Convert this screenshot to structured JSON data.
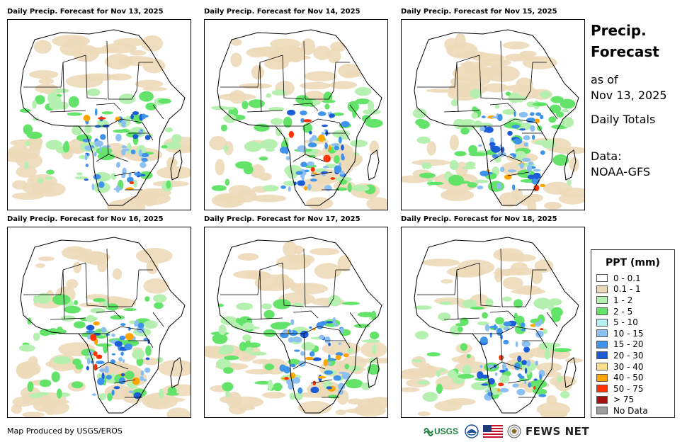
{
  "panels": [
    {
      "title": "Daily Precip. Forecast for Nov 13, 2025"
    },
    {
      "title": "Daily Precip. Forecast for Nov 14, 2025"
    },
    {
      "title": "Daily Precip. Forecast for Nov 15, 2025"
    },
    {
      "title": "Daily Precip. Forecast for Nov 16, 2025"
    },
    {
      "title": "Daily Precip. Forecast for Nov 17, 2025"
    },
    {
      "title": "Daily Precip. Forecast for Nov 18, 2025"
    }
  ],
  "info": {
    "title_line1": "Precip.",
    "title_line2": "Forecast",
    "as_of_label": "as of",
    "as_of_date": "Nov 13, 2025",
    "totals": "Daily Totals",
    "data_label": "Data:",
    "data_source": "NOAA-GFS"
  },
  "legend": {
    "title": "PPT (mm)",
    "items": [
      {
        "label": "0 - 0.1",
        "color": "#ffffff"
      },
      {
        "label": "0.1 - 1",
        "color": "#ecd9b8"
      },
      {
        "label": "1 - 2",
        "color": "#b6f0b0"
      },
      {
        "label": "2 - 5",
        "color": "#63e36a"
      },
      {
        "label": "5 - 10",
        "color": "#b5f0f2"
      },
      {
        "label": "10 - 15",
        "color": "#8cc0f2"
      },
      {
        "label": "15 - 20",
        "color": "#3f94ea"
      },
      {
        "label": "20 - 30",
        "color": "#1c5cd6"
      },
      {
        "label": "30 - 40",
        "color": "#ffe08c"
      },
      {
        "label": "40 - 50",
        "color": "#ffa500"
      },
      {
        "label": "50 - 75",
        "color": "#ff3300"
      },
      {
        "label": "> 75",
        "color": "#a51010"
      },
      {
        "label": "No Data",
        "color": "#9e9e9e"
      }
    ]
  },
  "footer": {
    "credit": "Map Produced by USGS/EROS",
    "usgs_logo": "USGS",
    "fews_net": "FEWS NET"
  },
  "icons": [
    "usgs-logo-icon",
    "noaa-logo-icon",
    "us-flag-icon",
    "state-department-seal-icon"
  ]
}
